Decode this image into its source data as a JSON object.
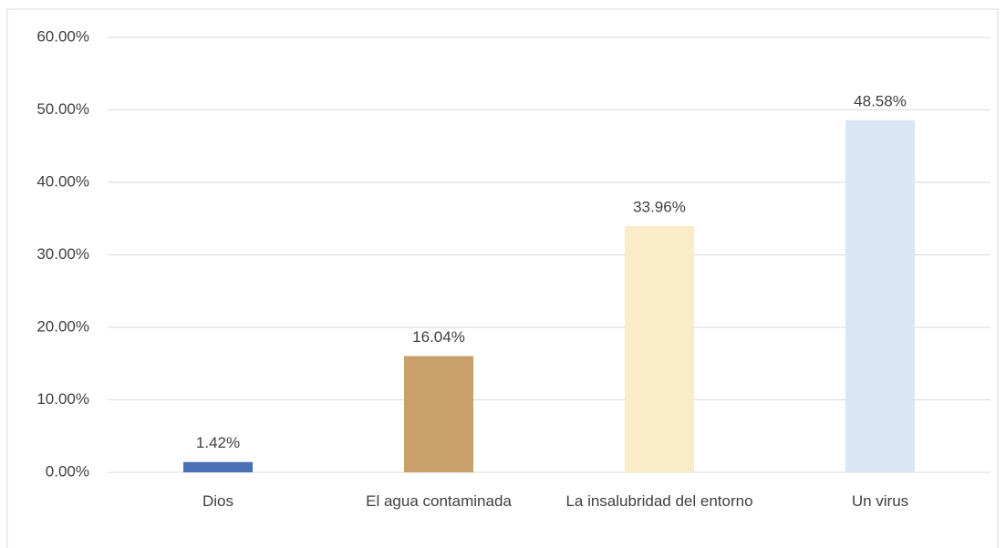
{
  "chart_data": {
    "type": "bar",
    "categories": [
      "Dios",
      "El agua contaminada",
      "La insalubridad del entorno",
      "Un virus"
    ],
    "values": [
      1.42,
      16.04,
      33.96,
      48.58
    ],
    "value_labels": [
      "1.42%",
      "16.04%",
      "33.96%",
      "48.58%"
    ],
    "colors": [
      "#4a6fb5",
      "#c9a06a",
      "#fbecc9",
      "#d9e7f5"
    ],
    "ylim": [
      0,
      60
    ],
    "yticks": [
      {
        "value": 0,
        "label": "0.00%"
      },
      {
        "value": 10,
        "label": "10.00%"
      },
      {
        "value": 20,
        "label": "20.00%"
      },
      {
        "value": 30,
        "label": "30.00%"
      },
      {
        "value": 40,
        "label": "40.00%"
      },
      {
        "value": 50,
        "label": "50.00%"
      },
      {
        "value": 60,
        "label": "60.00%"
      }
    ],
    "grid": true
  }
}
